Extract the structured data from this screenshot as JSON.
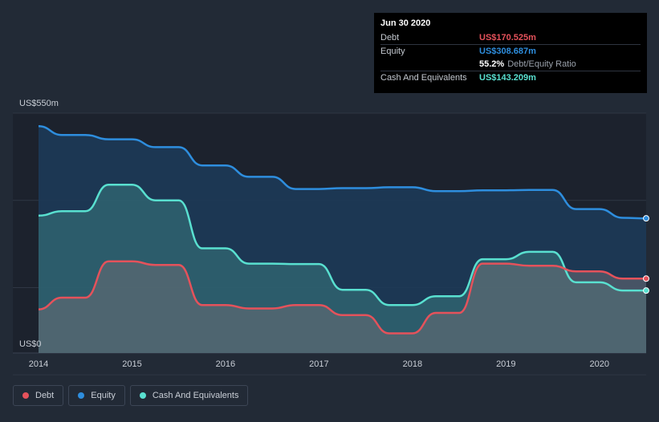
{
  "tooltip": {
    "date": "Jun 30 2020",
    "rows": [
      {
        "label": "Debt",
        "value": "US$170.525m",
        "color": "#e5525b"
      },
      {
        "label": "Equity",
        "value": "US$308.687m",
        "color": "#2e8ede"
      },
      {
        "label": "",
        "value": "55.2%",
        "sub": "Debt/Equity Ratio",
        "color": "#ffffff"
      },
      {
        "label": "Cash And Equivalents",
        "value": "US$143.209m",
        "color": "#59e0d0"
      }
    ]
  },
  "legend": [
    {
      "label": "Debt",
      "color": "#e5525b"
    },
    {
      "label": "Equity",
      "color": "#2e8ede"
    },
    {
      "label": "Cash And Equivalents",
      "color": "#59e0d0"
    }
  ],
  "chart_data": {
    "type": "area",
    "ylabel_top": "US$550m",
    "ylabel_bottom": "US$0",
    "ylim": [
      0,
      550
    ],
    "xlim": [
      2014.0,
      2020.5
    ],
    "x_ticks": [
      "2014",
      "2015",
      "2016",
      "2017",
      "2018",
      "2019",
      "2020"
    ],
    "series": [
      {
        "name": "Equity",
        "color": "#2e8ede",
        "points": [
          [
            2014.0,
            520
          ],
          [
            2014.25,
            500
          ],
          [
            2014.5,
            500
          ],
          [
            2014.75,
            490
          ],
          [
            2015.0,
            490
          ],
          [
            2015.25,
            472
          ],
          [
            2015.5,
            472
          ],
          [
            2015.75,
            430
          ],
          [
            2016.0,
            430
          ],
          [
            2016.25,
            404
          ],
          [
            2016.5,
            404
          ],
          [
            2016.75,
            376
          ],
          [
            2017.0,
            376
          ],
          [
            2017.25,
            378
          ],
          [
            2017.5,
            378
          ],
          [
            2017.75,
            380
          ],
          [
            2018.0,
            380
          ],
          [
            2018.25,
            371
          ],
          [
            2018.5,
            371
          ],
          [
            2018.75,
            373
          ],
          [
            2019.0,
            373
          ],
          [
            2019.25,
            374
          ],
          [
            2019.5,
            374
          ],
          [
            2019.75,
            330
          ],
          [
            2020.0,
            330
          ],
          [
            2020.25,
            310
          ],
          [
            2020.5,
            308.687
          ]
        ]
      },
      {
        "name": "Cash And Equivalents",
        "color": "#59e0d0",
        "points": [
          [
            2014.0,
            315
          ],
          [
            2014.25,
            325
          ],
          [
            2014.5,
            325
          ],
          [
            2014.75,
            386
          ],
          [
            2015.0,
            386
          ],
          [
            2015.25,
            350
          ],
          [
            2015.5,
            350
          ],
          [
            2015.75,
            240
          ],
          [
            2016.0,
            240
          ],
          [
            2016.25,
            205
          ],
          [
            2016.5,
            205
          ],
          [
            2016.75,
            204
          ],
          [
            2017.0,
            204
          ],
          [
            2017.25,
            145
          ],
          [
            2017.5,
            145
          ],
          [
            2017.75,
            110
          ],
          [
            2018.0,
            110
          ],
          [
            2018.25,
            130
          ],
          [
            2018.5,
            130
          ],
          [
            2018.75,
            215
          ],
          [
            2019.0,
            215
          ],
          [
            2019.25,
            232
          ],
          [
            2019.5,
            232
          ],
          [
            2019.75,
            162
          ],
          [
            2020.0,
            162
          ],
          [
            2020.25,
            143.209
          ],
          [
            2020.5,
            143.209
          ]
        ]
      },
      {
        "name": "Debt",
        "color": "#e5525b",
        "points": [
          [
            2014.0,
            100
          ],
          [
            2014.25,
            127
          ],
          [
            2014.5,
            127
          ],
          [
            2014.75,
            210
          ],
          [
            2015.0,
            210
          ],
          [
            2015.25,
            202
          ],
          [
            2015.5,
            202
          ],
          [
            2015.75,
            110
          ],
          [
            2016.0,
            110
          ],
          [
            2016.25,
            102
          ],
          [
            2016.5,
            102
          ],
          [
            2016.75,
            110
          ],
          [
            2017.0,
            110
          ],
          [
            2017.25,
            87
          ],
          [
            2017.5,
            87
          ],
          [
            2017.75,
            45
          ],
          [
            2018.0,
            45
          ],
          [
            2018.25,
            92
          ],
          [
            2018.5,
            92
          ],
          [
            2018.75,
            205
          ],
          [
            2019.0,
            205
          ],
          [
            2019.25,
            200
          ],
          [
            2019.5,
            200
          ],
          [
            2019.75,
            187
          ],
          [
            2020.0,
            187
          ],
          [
            2020.25,
            170.525
          ],
          [
            2020.5,
            170.525
          ]
        ]
      }
    ]
  }
}
